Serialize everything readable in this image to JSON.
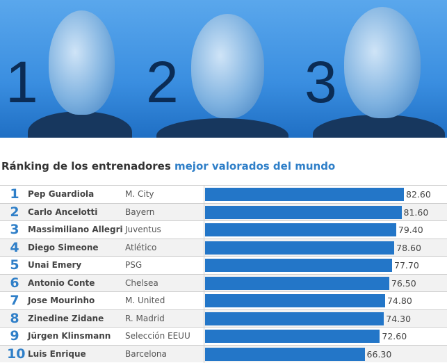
{
  "banner": {
    "numbers": [
      "1",
      "2",
      "3"
    ]
  },
  "title": {
    "part1": "Ránking de los entrenadores ",
    "part2": "mejor valorados del mundo"
  },
  "chart_data": {
    "type": "bar",
    "orientation": "horizontal",
    "title": "Ránking de los entrenadores mejor valorados del mundo",
    "categories": [
      "Pep Guardiola",
      "Carlo Ancelotti",
      "Massimiliano Allegri",
      "Diego Simeone",
      "Unai Emery",
      "Antonio Conte",
      "Jose Mourinho",
      "Zinedine Zidane",
      "Jürgen Klinsmann",
      "Luis Enrique"
    ],
    "ranks": [
      "1",
      "2",
      "3",
      "4",
      "5",
      "6",
      "7",
      "8",
      "9",
      "10"
    ],
    "teams": [
      "M. City",
      "Bayern",
      "Juventus",
      "Atlético",
      "PSG",
      "Chelsea",
      "M. United",
      "R. Madrid",
      "Selección EEUU",
      "Barcelona"
    ],
    "values": [
      82.6,
      81.6,
      79.4,
      78.6,
      77.7,
      76.5,
      74.8,
      74.3,
      72.6,
      66.3
    ],
    "labels": [
      "82.60",
      "81.60",
      "79.40",
      "78.60",
      "77.70",
      "76.50",
      "74.80",
      "74.30",
      "72.60",
      "66.30"
    ],
    "xlim": [
      0,
      100
    ],
    "bar_color": "#2376c8"
  }
}
